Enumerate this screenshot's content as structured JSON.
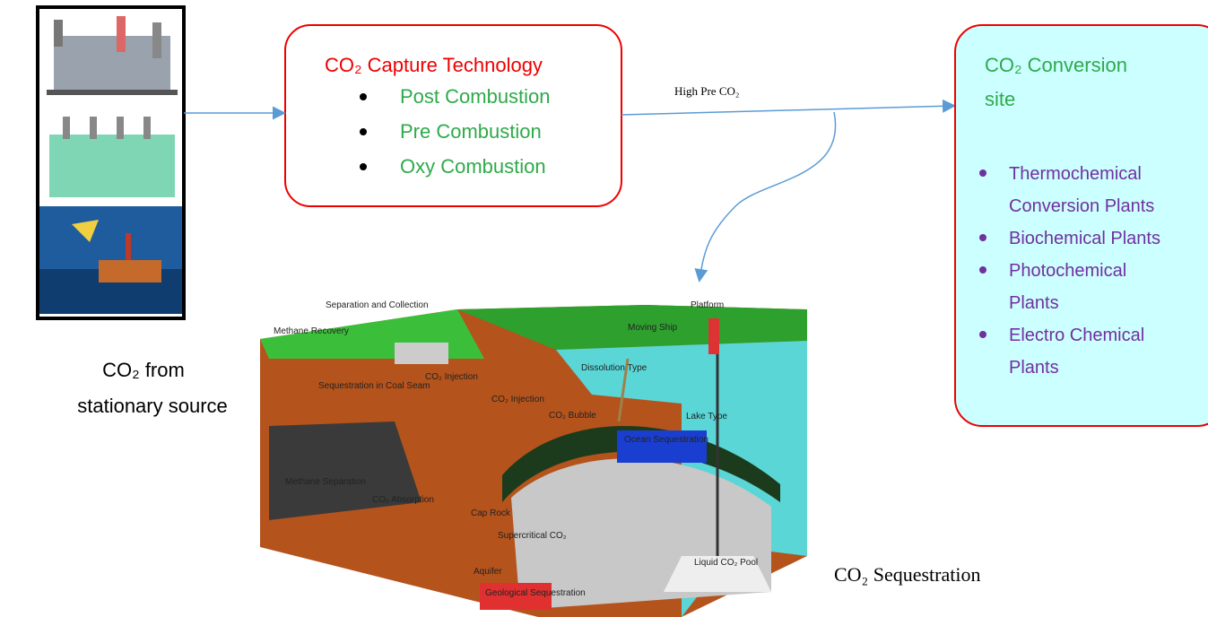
{
  "source": {
    "caption": [
      "CO₂ from",
      "stationary source"
    ]
  },
  "capture": {
    "title": "CO₂ Capture Technology",
    "items": [
      "Post Combustion",
      "Pre Combustion",
      "Oxy Combustion"
    ]
  },
  "flow_label": "High Pre CO₂",
  "conversion": {
    "title": [
      "CO₂ Conversion",
      "site"
    ],
    "items": [
      [
        "Thermochemical",
        "Conversion Plants"
      ],
      [
        "Biochemical Plants"
      ],
      [
        "Photochemical",
        "Plants"
      ],
      [
        "Electro Chemical",
        "Plants"
      ]
    ]
  },
  "sequestration": {
    "caption": "CO₂ Sequestration",
    "labels": [
      "Separation and Collection",
      "Platform",
      "Methane Recovery",
      "Moving Ship",
      "Dissolution Type",
      "Sequestration in Coal Seam",
      "CO₂ Injection",
      "CO₂ Injection",
      "CO₂ Bubble",
      "Lake Type",
      "Methane Separation",
      "CO₂ Absorption",
      "Ocean Sequestration",
      "Cap Rock",
      "Supercritical CO₂",
      "Liquid CO₂ Pool",
      "Aquifer",
      "Geological Sequestration"
    ]
  }
}
